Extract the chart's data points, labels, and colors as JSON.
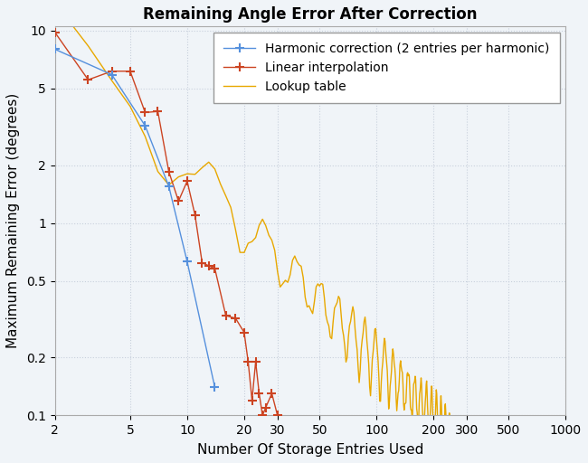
{
  "title": "Remaining Angle Error After Correction",
  "xlabel": "Number Of Storage Entries Used",
  "ylabel": "Maximum Remaining Error (degrees)",
  "background_color": "#f0f4f8",
  "plot_bg_color": "#f0f4f8",
  "grid_color": "#c8d0dc",
  "xlim": [
    2,
    1000
  ],
  "ylim": [
    0.1,
    10.5
  ],
  "harmonic_color": "#5590dd",
  "linear_color": "#cc4422",
  "lookup_color": "#e8a800",
  "harmonic_x": [
    2,
    4,
    6,
    8,
    10,
    14
  ],
  "harmonic_y": [
    8.0,
    5.9,
    3.2,
    1.55,
    0.63,
    0.14
  ],
  "linear_x": [
    2,
    3,
    4,
    5,
    6,
    7,
    8,
    9,
    10,
    11,
    12,
    13,
    14,
    16,
    18,
    20,
    21,
    22,
    23,
    24,
    25,
    26,
    28,
    30
  ],
  "linear_y": [
    9.8,
    5.55,
    6.15,
    6.15,
    3.75,
    3.8,
    1.85,
    1.3,
    1.65,
    1.1,
    0.62,
    0.6,
    0.58,
    0.33,
    0.32,
    0.27,
    0.19,
    0.12,
    0.19,
    0.13,
    0.1,
    0.11,
    0.13,
    0.1
  ],
  "legend_labels": [
    "Harmonic correction (2 entries per harmonic)",
    "Linear interpolation",
    "Lookup table"
  ],
  "xticks": [
    2,
    5,
    10,
    20,
    30,
    50,
    100,
    200,
    300,
    500,
    1000
  ],
  "yticks": [
    0.1,
    0.2,
    0.5,
    1,
    2,
    5,
    10
  ],
  "title_fontsize": 12,
  "label_fontsize": 11,
  "tick_fontsize": 10,
  "legend_fontsize": 10
}
